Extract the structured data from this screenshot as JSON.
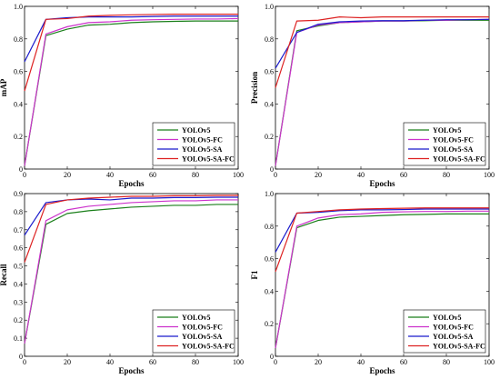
{
  "chart_data": [
    {
      "type": "line",
      "title": "",
      "xlabel": "Epochs",
      "ylabel": "mAP",
      "xlim": [
        0,
        100
      ],
      "ylim": [
        0,
        1.0
      ],
      "xticks": [
        "0",
        "20",
        "40",
        "60",
        "80",
        "100"
      ],
      "yticks": [
        "0",
        "0.2",
        "0.4",
        "0.6",
        "0.8",
        "1.0"
      ],
      "legend_position": "bottom-right",
      "grid": false,
      "x": [
        0,
        10,
        20,
        30,
        40,
        50,
        60,
        70,
        80,
        90,
        100
      ],
      "series": [
        {
          "name": "YOLOv5",
          "color": "#1a7f1a",
          "values": [
            0.02,
            0.82,
            0.86,
            0.885,
            0.89,
            0.9,
            0.905,
            0.908,
            0.91,
            0.91,
            0.91
          ]
        },
        {
          "name": "YOLOv5-FC",
          "color": "#cc33cc",
          "values": [
            0.02,
            0.83,
            0.875,
            0.9,
            0.905,
            0.915,
            0.918,
            0.92,
            0.922,
            0.922,
            0.925
          ]
        },
        {
          "name": "YOLOv5-SA",
          "color": "#1a1acc",
          "values": [
            0.66,
            0.92,
            0.93,
            0.935,
            0.935,
            0.935,
            0.938,
            0.94,
            0.94,
            0.94,
            0.94
          ]
        },
        {
          "name": "YOLOv5-SA-FC",
          "color": "#dd2222",
          "values": [
            0.48,
            0.92,
            0.925,
            0.94,
            0.945,
            0.948,
            0.95,
            0.952,
            0.952,
            0.952,
            0.952
          ]
        }
      ]
    },
    {
      "type": "line",
      "title": "",
      "xlabel": "Epochs",
      "ylabel": "Precision",
      "xlim": [
        0,
        100
      ],
      "ylim": [
        0,
        1.0
      ],
      "xticks": [
        "0",
        "20",
        "40",
        "60",
        "80",
        "100"
      ],
      "yticks": [
        "0",
        "0.2",
        "0.4",
        "0.6",
        "0.8",
        "1.0"
      ],
      "legend_position": "bottom-right",
      "grid": false,
      "x": [
        0,
        10,
        20,
        30,
        40,
        50,
        60,
        70,
        80,
        90,
        100
      ],
      "series": [
        {
          "name": "YOLOv5",
          "color": "#1a7f1a",
          "values": [
            0.02,
            0.85,
            0.88,
            0.9,
            0.905,
            0.91,
            0.91,
            0.912,
            0.915,
            0.915,
            0.915
          ]
        },
        {
          "name": "YOLOv5-FC",
          "color": "#cc33cc",
          "values": [
            0.02,
            0.84,
            0.885,
            0.9,
            0.905,
            0.91,
            0.91,
            0.915,
            0.915,
            0.918,
            0.92
          ]
        },
        {
          "name": "YOLOv5-SA",
          "color": "#1a1acc",
          "values": [
            0.62,
            0.84,
            0.89,
            0.905,
            0.91,
            0.912,
            0.912,
            0.915,
            0.918,
            0.918,
            0.92
          ]
        },
        {
          "name": "YOLOv5-SA-FC",
          "color": "#dd2222",
          "values": [
            0.5,
            0.91,
            0.915,
            0.935,
            0.93,
            0.935,
            0.935,
            0.935,
            0.935,
            0.935,
            0.935
          ]
        }
      ]
    },
    {
      "type": "line",
      "title": "",
      "xlabel": "Epochs",
      "ylabel": "Recall",
      "xlim": [
        0,
        100
      ],
      "ylim": [
        0,
        0.9
      ],
      "xticks": [
        "0",
        "20",
        "40",
        "60",
        "80",
        "100"
      ],
      "yticks": [
        "0",
        "0.1",
        "0.2",
        "0.3",
        "0.4",
        "0.5",
        "0.6",
        "0.7",
        "0.8",
        "0.9"
      ],
      "legend_position": "bottom-right",
      "grid": false,
      "x": [
        0,
        10,
        20,
        30,
        40,
        50,
        60,
        70,
        80,
        90,
        100
      ],
      "series": [
        {
          "name": "YOLOv5",
          "color": "#1a7f1a",
          "values": [
            0.07,
            0.73,
            0.79,
            0.805,
            0.815,
            0.825,
            0.83,
            0.835,
            0.835,
            0.84,
            0.84
          ]
        },
        {
          "name": "YOLOv5-FC",
          "color": "#cc33cc",
          "values": [
            0.07,
            0.75,
            0.81,
            0.83,
            0.84,
            0.85,
            0.855,
            0.86,
            0.86,
            0.865,
            0.865
          ]
        },
        {
          "name": "YOLOv5-SA",
          "color": "#1a1acc",
          "values": [
            0.67,
            0.85,
            0.865,
            0.87,
            0.865,
            0.875,
            0.875,
            0.878,
            0.878,
            0.88,
            0.88
          ]
        },
        {
          "name": "YOLOv5-SA-FC",
          "color": "#dd2222",
          "values": [
            0.52,
            0.84,
            0.865,
            0.875,
            0.88,
            0.885,
            0.885,
            0.888,
            0.888,
            0.89,
            0.89
          ]
        }
      ]
    },
    {
      "type": "line",
      "title": "",
      "xlabel": "Epochs",
      "ylabel": "F1",
      "xlim": [
        0,
        100
      ],
      "ylim": [
        0,
        1.0
      ],
      "xticks": [
        "0",
        "20",
        "40",
        "60",
        "80",
        "100"
      ],
      "yticks": [
        "0",
        "0.2",
        "0.4",
        "0.6",
        "0.8",
        "1.0"
      ],
      "legend_position": "bottom-right",
      "grid": false,
      "x": [
        0,
        10,
        20,
        30,
        40,
        50,
        60,
        70,
        80,
        90,
        100
      ],
      "series": [
        {
          "name": "YOLOv5",
          "color": "#1a7f1a",
          "values": [
            0.05,
            0.79,
            0.835,
            0.855,
            0.86,
            0.865,
            0.87,
            0.872,
            0.875,
            0.875,
            0.875
          ]
        },
        {
          "name": "YOLOv5-FC",
          "color": "#cc33cc",
          "values": [
            0.05,
            0.8,
            0.85,
            0.87,
            0.875,
            0.885,
            0.888,
            0.89,
            0.89,
            0.892,
            0.892
          ]
        },
        {
          "name": "YOLOv5-SA",
          "color": "#1a1acc",
          "values": [
            0.64,
            0.88,
            0.885,
            0.895,
            0.9,
            0.9,
            0.902,
            0.905,
            0.905,
            0.905,
            0.905
          ]
        },
        {
          "name": "YOLOv5-SA-FC",
          "color": "#dd2222",
          "values": [
            0.52,
            0.88,
            0.89,
            0.9,
            0.905,
            0.908,
            0.91,
            0.912,
            0.912,
            0.912,
            0.912
          ]
        }
      ]
    }
  ]
}
